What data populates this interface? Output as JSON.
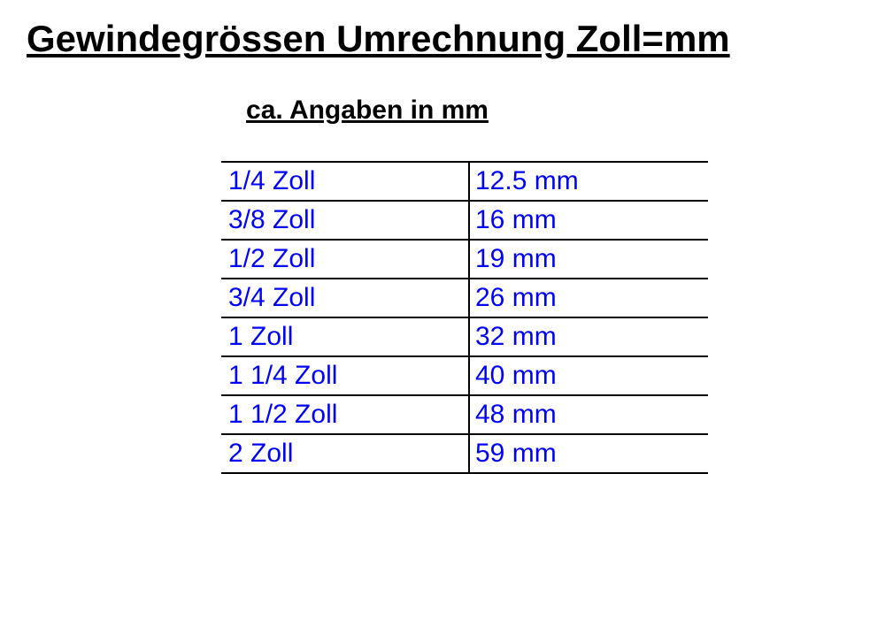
{
  "title": "Gewindegrössen Umrechnung Zoll=mm",
  "subtitle": "ca. Angaben in mm",
  "table": {
    "columns": [
      "zoll",
      "mm"
    ],
    "rows": [
      {
        "zoll": "1/4 Zoll",
        "mm": "12.5 mm"
      },
      {
        "zoll": "3/8 Zoll",
        "mm": "16 mm"
      },
      {
        "zoll": "1/2 Zoll",
        "mm": "19 mm"
      },
      {
        "zoll": "3/4 Zoll",
        "mm": "26 mm"
      },
      {
        "zoll": "1 Zoll",
        "mm": "32 mm"
      },
      {
        "zoll": "1 1/4 Zoll",
        "mm": "40 mm"
      },
      {
        "zoll": "1 1/2 Zoll",
        "mm": "48 mm"
      },
      {
        "zoll": "2 Zoll",
        "mm": "59 mm"
      }
    ],
    "cell_text_color": "#0000ff",
    "border_color": "#000000",
    "background_color": "#ffffff",
    "cell_fontsize": 30,
    "col_zoll_width": 280,
    "col_mm_width": 270
  },
  "title_fontsize": 42,
  "subtitle_fontsize": 30,
  "text_color": "#000000"
}
